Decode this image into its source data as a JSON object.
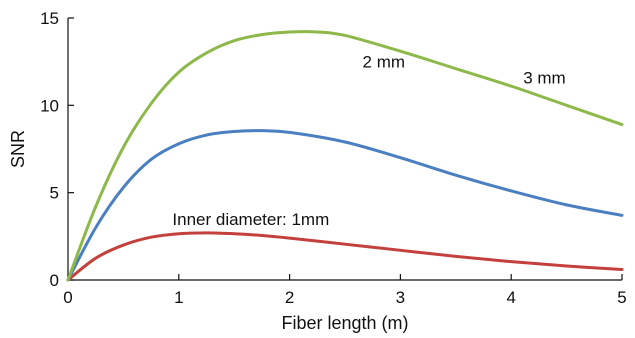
{
  "chart_data": {
    "type": "line",
    "xlabel": "Fiber length (m)",
    "ylabel": "SNR",
    "xlim": [
      0,
      5
    ],
    "ylim": [
      0,
      15
    ],
    "xticks": [
      "0",
      "1",
      "2",
      "3",
      "4",
      "5"
    ],
    "yticks": [
      "0",
      "5",
      "10",
      "15"
    ],
    "grid": false,
    "series": [
      {
        "name": "Inner diameter: 1mm",
        "color": "#c4403d",
        "x": [
          0,
          0.25,
          0.5,
          0.75,
          1.0,
          1.25,
          1.5,
          1.75,
          2.0,
          2.5,
          3.0,
          3.5,
          4.0,
          4.5,
          5.0
        ],
        "values": [
          0,
          1.25,
          2.0,
          2.45,
          2.65,
          2.7,
          2.65,
          2.55,
          2.4,
          2.05,
          1.7,
          1.35,
          1.05,
          0.8,
          0.6
        ]
      },
      {
        "name": "2 mm",
        "color": "#4a7fc1",
        "x": [
          0,
          0.25,
          0.5,
          0.75,
          1.0,
          1.25,
          1.5,
          1.75,
          2.0,
          2.5,
          3.0,
          3.5,
          4.0,
          4.5,
          5.0
        ],
        "values": [
          0,
          3.0,
          5.3,
          6.9,
          7.8,
          8.3,
          8.5,
          8.55,
          8.45,
          7.9,
          7.0,
          6.0,
          5.1,
          4.3,
          3.7
        ]
      },
      {
        "name": "3 mm",
        "color": "#8db84a",
        "x": [
          0,
          0.25,
          0.5,
          0.75,
          1.0,
          1.25,
          1.5,
          1.75,
          2.0,
          2.25,
          2.5,
          3.0,
          3.5,
          4.0,
          4.5,
          5.0
        ],
        "values": [
          0,
          4.2,
          7.6,
          10.1,
          11.9,
          13.0,
          13.7,
          14.05,
          14.2,
          14.2,
          14.0,
          13.1,
          12.1,
          11.1,
          10.0,
          8.9
        ]
      }
    ],
    "annotations": [
      {
        "text": "Inner diameter: 1mm",
        "x": 1.65,
        "y": 3.5
      },
      {
        "text": "2 mm",
        "x": 2.85,
        "y": 12.5
      },
      {
        "text": "3 mm",
        "x": 4.3,
        "y": 11.6
      }
    ]
  }
}
